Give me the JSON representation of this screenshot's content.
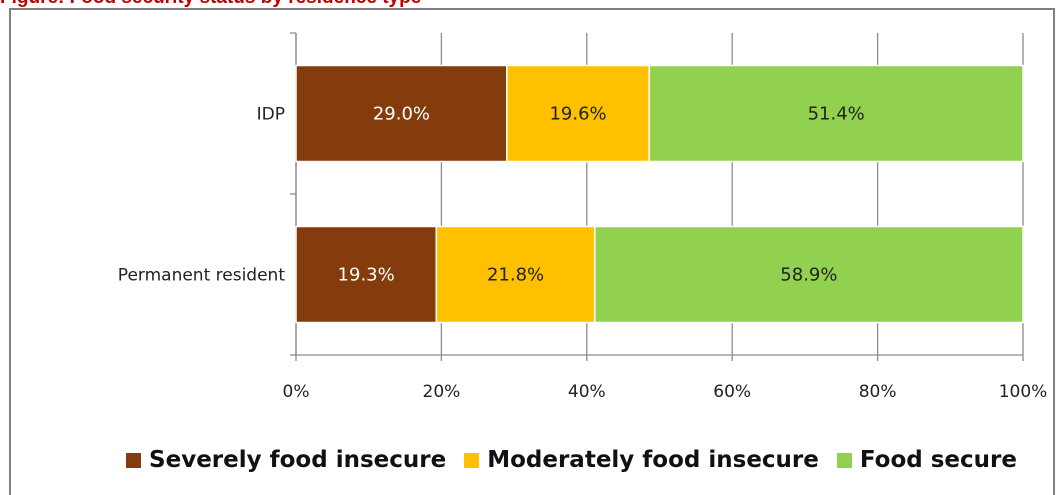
{
  "caption_fragment": "Figure: Food security status by residence type",
  "chart_data": {
    "type": "bar",
    "orientation": "horizontal",
    "stacked": true,
    "categories": [
      "IDP",
      "Permanent resident"
    ],
    "series": [
      {
        "name": "Severely food insecure",
        "color": "#843c0c",
        "label_color": "#ffffff",
        "values": [
          29.0,
          19.3
        ],
        "labels": [
          "29.0%",
          "19.3%"
        ]
      },
      {
        "name": "Moderately food insecure",
        "color": "#ffc000",
        "label_color": "#222222",
        "values": [
          19.6,
          21.8
        ],
        "labels": [
          "19.6%",
          "21.8%"
        ]
      },
      {
        "name": "Food secure",
        "color": "#92d050",
        "label_color": "#222222",
        "values": [
          51.4,
          58.9
        ],
        "labels": [
          "51.4%",
          "58.9%"
        ]
      }
    ],
    "x_ticks": [
      "0%",
      "20%",
      "40%",
      "60%",
      "80%",
      "100%"
    ],
    "xlim": [
      0,
      100
    ],
    "grid": true,
    "legend_position": "bottom"
  }
}
